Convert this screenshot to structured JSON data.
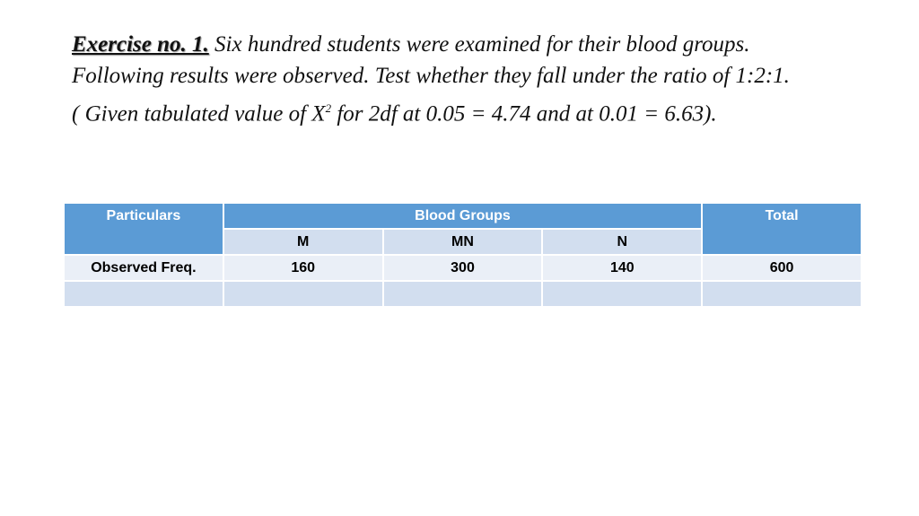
{
  "heading": {
    "label": "Exercise no. 1.",
    "text_line1": "Six hundred students were examined for their blood groups.",
    "text_line2": "Following results were observed. Test whether they fall under the ratio of 1:2:1.",
    "given_before": "( Given tabulated value of X",
    "given_sup": "2",
    "given_after": " for 2df at 0.05 = 4.74 and at 0.01 = 6.63)."
  },
  "table": {
    "header": {
      "particulars": "Particulars",
      "blood_groups": "Blood Groups",
      "total": "Total"
    },
    "subheader": [
      "M",
      "MN",
      "N"
    ],
    "rows": [
      [
        "Observed Freq.",
        "160",
        "300",
        "140",
        "600"
      ]
    ]
  }
}
